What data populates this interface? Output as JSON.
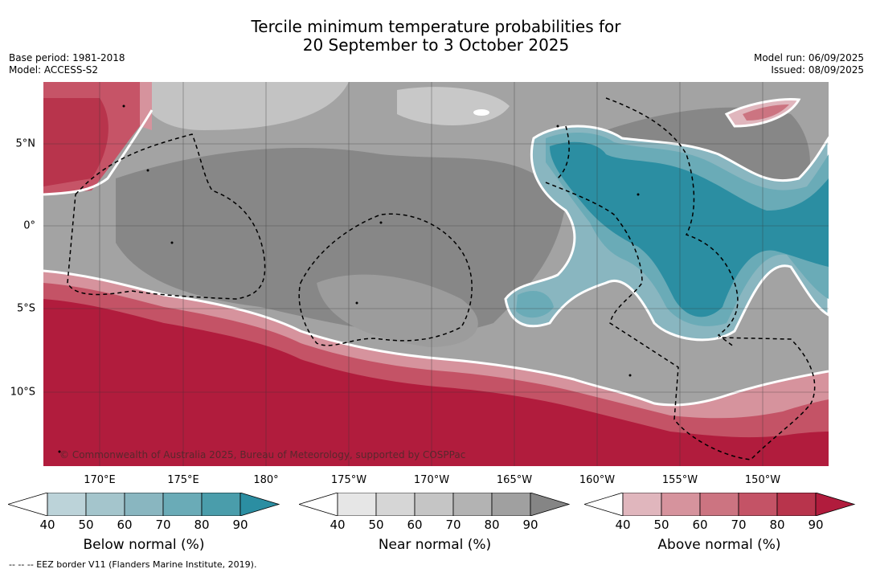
{
  "title": {
    "line1": "Tercile minimum temperature probabilities for",
    "line2": "20 September to 3 October 2025"
  },
  "meta": {
    "base_period": "Base period: 1981-2018",
    "model": "Model: ACCESS-S2",
    "model_run": "Model run: 06/09/2025",
    "issued": "Issued: 08/09/2025"
  },
  "map": {
    "copyright": "© Commonwealth of Australia 2025, Bureau of Meteorology, supported by COSPPac",
    "lon_labels": [
      "170°E",
      "175°E",
      "180°",
      "175°W",
      "170°W",
      "165°W",
      "160°W",
      "155°W",
      "150°W"
    ],
    "lat_labels": [
      "5°N",
      "0°",
      "5°S",
      "10°S"
    ],
    "extent": {
      "lon_min": 166.4,
      "lon_max": 213.4,
      "lat_min": -14.3,
      "lat_max": 8.7
    }
  },
  "colorbars": [
    {
      "name": "below",
      "label": "Below normal (%)",
      "ticks": [
        "40",
        "50",
        "60",
        "70",
        "80",
        "90"
      ],
      "colors": [
        "#ffffff",
        "#bcd3d9",
        "#a4c5cc",
        "#89b6c0",
        "#6aabb7",
        "#4a9dab",
        "#2b8ea2"
      ]
    },
    {
      "name": "near",
      "label": "Near normal (%)",
      "ticks": [
        "40",
        "50",
        "60",
        "70",
        "80",
        "90"
      ],
      "colors": [
        "#ffffff",
        "#e6e6e6",
        "#d6d6d6",
        "#c5c5c5",
        "#b3b3b3",
        "#a0a0a0",
        "#858585"
      ]
    },
    {
      "name": "above",
      "label": "Above normal (%)",
      "ticks": [
        "40",
        "50",
        "60",
        "70",
        "80",
        "90"
      ],
      "colors": [
        "#ffffff",
        "#e0b6bd",
        "#d6939d",
        "#cc7481",
        "#c45366",
        "#b8344c",
        "#b11c3d"
      ]
    }
  ],
  "footnote": "--  --  -- EEZ border V11 (Flanders Marine Institute, 2019)."
}
